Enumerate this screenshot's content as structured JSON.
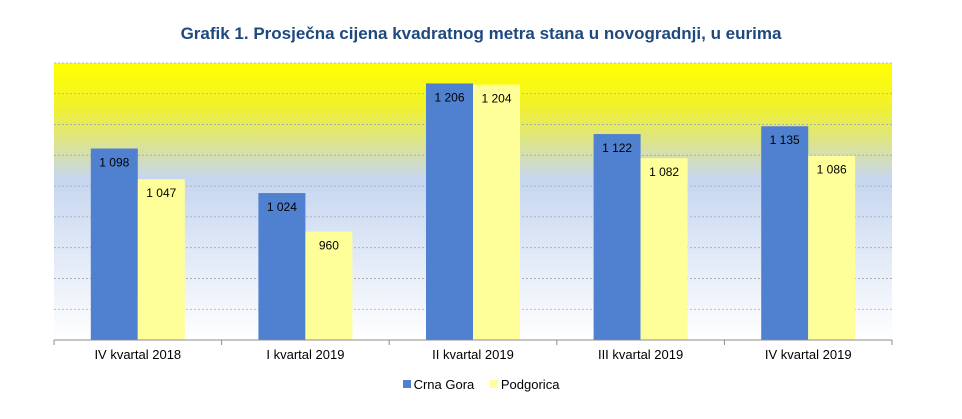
{
  "chart_data": {
    "type": "bar",
    "title": "Grafik 1. Prosječna cijena kvadratnog metra stana u novogradnji, u eurima",
    "categories": [
      "IV kvartal 2018",
      "I kvartal 2019",
      "II kvartal 2019",
      "III kvartal 2019",
      "IV kvartal 2019"
    ],
    "series": [
      {
        "name": "Crna Gora",
        "values": [
          1098,
          1024,
          1206,
          1122,
          1135
        ],
        "labels": [
          "1 098",
          "1 024",
          "1 206",
          "1 122",
          "1 135"
        ],
        "color": "#4f81d0"
      },
      {
        "name": "Podgorica",
        "values": [
          1047,
          960,
          1204,
          1082,
          1086
        ],
        "labels": [
          "1 047",
          "960",
          "1 204",
          "1 082",
          "1 086"
        ],
        "color": "#ffff99"
      }
    ],
    "ylim": [
      780,
      1240
    ],
    "grid": true,
    "legend": "bottom",
    "background_gradient": [
      "#ffff00",
      "#c6d6f0",
      "#ffffff"
    ]
  }
}
